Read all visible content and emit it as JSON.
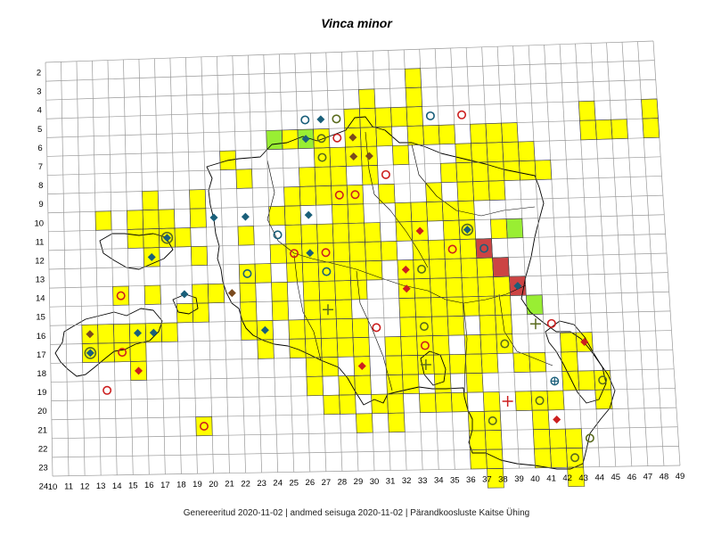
{
  "title": "Vinca minor",
  "footer": "Genereeritud 2020-11-02  |  andmed seisuga 2020-11-02  |  Pärandkoosluste Kaitse Ühing",
  "grid": {
    "columns": [
      10,
      11,
      12,
      13,
      14,
      15,
      16,
      17,
      18,
      19,
      20,
      21,
      22,
      23,
      24,
      25,
      26,
      27,
      28,
      29,
      30,
      31,
      32,
      33,
      34,
      35,
      36,
      37,
      38,
      39,
      40,
      41,
      42,
      43,
      44,
      45,
      46,
      47,
      48,
      49
    ],
    "rows": [
      2,
      3,
      4,
      5,
      6,
      7,
      8,
      9,
      10,
      11,
      12,
      13,
      14,
      15,
      16,
      17,
      18,
      19,
      20,
      21,
      22,
      23,
      24
    ]
  },
  "colors": {
    "yellow": "#ffff00",
    "green": "#99ee33",
    "red": "#cc4444",
    "blue_marker": "#1a5f7a",
    "brown_marker": "#7a4a1e",
    "red_marker": "#cc1f1f",
    "olive_marker": "#5a6b1e",
    "grid_line": "#999999",
    "coast": "#000000"
  },
  "filled_cells": {
    "yellow": [
      [
        33,
        3
      ],
      [
        30,
        4
      ],
      [
        33,
        4
      ],
      [
        29,
        5
      ],
      [
        30,
        5
      ],
      [
        31,
        5
      ],
      [
        32,
        5
      ],
      [
        33,
        5
      ],
      [
        44,
        5
      ],
      [
        48,
        5
      ],
      [
        25,
        6
      ],
      [
        27,
        6
      ],
      [
        29,
        6
      ],
      [
        30,
        6
      ],
      [
        31,
        6
      ],
      [
        33,
        6
      ],
      [
        34,
        6
      ],
      [
        35,
        6
      ],
      [
        37,
        6
      ],
      [
        38,
        6
      ],
      [
        39,
        6
      ],
      [
        44,
        6
      ],
      [
        45,
        6
      ],
      [
        46,
        6
      ],
      [
        48,
        6
      ],
      [
        21,
        7
      ],
      [
        27,
        7
      ],
      [
        28,
        7
      ],
      [
        29,
        7
      ],
      [
        30,
        7
      ],
      [
        32,
        7
      ],
      [
        36,
        7
      ],
      [
        37,
        7
      ],
      [
        38,
        7
      ],
      [
        39,
        7
      ],
      [
        40,
        7
      ],
      [
        22,
        8
      ],
      [
        26,
        8
      ],
      [
        27,
        8
      ],
      [
        28,
        8
      ],
      [
        30,
        8
      ],
      [
        35,
        8
      ],
      [
        36,
        8
      ],
      [
        37,
        8
      ],
      [
        38,
        8
      ],
      [
        39,
        8
      ],
      [
        40,
        8
      ],
      [
        41,
        8
      ],
      [
        16,
        9
      ],
      [
        19,
        9
      ],
      [
        25,
        9
      ],
      [
        26,
        9
      ],
      [
        27,
        9
      ],
      [
        28,
        9
      ],
      [
        29,
        9
      ],
      [
        31,
        9
      ],
      [
        34,
        9
      ],
      [
        36,
        9
      ],
      [
        37,
        9
      ],
      [
        38,
        9
      ],
      [
        13,
        10
      ],
      [
        15,
        10
      ],
      [
        16,
        10
      ],
      [
        17,
        10
      ],
      [
        19,
        10
      ],
      [
        24,
        10
      ],
      [
        25,
        10
      ],
      [
        28,
        10
      ],
      [
        29,
        10
      ],
      [
        32,
        10
      ],
      [
        33,
        10
      ],
      [
        34,
        10
      ],
      [
        35,
        10
      ],
      [
        36,
        10
      ],
      [
        15,
        11
      ],
      [
        16,
        11
      ],
      [
        17,
        11
      ],
      [
        18,
        11
      ],
      [
        22,
        11
      ],
      [
        25,
        11
      ],
      [
        26,
        11
      ],
      [
        27,
        11
      ],
      [
        28,
        11
      ],
      [
        29,
        11
      ],
      [
        30,
        11
      ],
      [
        32,
        11
      ],
      [
        33,
        11
      ],
      [
        35,
        11
      ],
      [
        36,
        11
      ],
      [
        38,
        11
      ],
      [
        16,
        12
      ],
      [
        19,
        12
      ],
      [
        24,
        12
      ],
      [
        25,
        12
      ],
      [
        26,
        12
      ],
      [
        27,
        12
      ],
      [
        28,
        12
      ],
      [
        29,
        12
      ],
      [
        30,
        12
      ],
      [
        31,
        12
      ],
      [
        33,
        12
      ],
      [
        34,
        12
      ],
      [
        35,
        12
      ],
      [
        36,
        12
      ],
      [
        37,
        12
      ],
      [
        22,
        13
      ],
      [
        23,
        13
      ],
      [
        25,
        13
      ],
      [
        26,
        13
      ],
      [
        27,
        13
      ],
      [
        28,
        13
      ],
      [
        29,
        13
      ],
      [
        30,
        13
      ],
      [
        32,
        13
      ],
      [
        33,
        13
      ],
      [
        34,
        13
      ],
      [
        35,
        13
      ],
      [
        36,
        13
      ],
      [
        37,
        13
      ],
      [
        38,
        13
      ],
      [
        14,
        14
      ],
      [
        16,
        14
      ],
      [
        19,
        14
      ],
      [
        20,
        14
      ],
      [
        22,
        14
      ],
      [
        24,
        14
      ],
      [
        26,
        14
      ],
      [
        27,
        14
      ],
      [
        28,
        14
      ],
      [
        29,
        14
      ],
      [
        32,
        14
      ],
      [
        33,
        14
      ],
      [
        34,
        14
      ],
      [
        35,
        14
      ],
      [
        36,
        14
      ],
      [
        37,
        14
      ],
      [
        38,
        14
      ],
      [
        18,
        15
      ],
      [
        19,
        15
      ],
      [
        22,
        15
      ],
      [
        24,
        15
      ],
      [
        26,
        15
      ],
      [
        27,
        15
      ],
      [
        28,
        15
      ],
      [
        32,
        15
      ],
      [
        33,
        15
      ],
      [
        34,
        15
      ],
      [
        35,
        15
      ],
      [
        36,
        15
      ],
      [
        37,
        15
      ],
      [
        38,
        15
      ],
      [
        12,
        16
      ],
      [
        13,
        16
      ],
      [
        14,
        16
      ],
      [
        15,
        16
      ],
      [
        16,
        16
      ],
      [
        17,
        16
      ],
      [
        22,
        16
      ],
      [
        23,
        16
      ],
      [
        25,
        16
      ],
      [
        26,
        16
      ],
      [
        27,
        16
      ],
      [
        28,
        16
      ],
      [
        29,
        16
      ],
      [
        32,
        16
      ],
      [
        33,
        16
      ],
      [
        34,
        16
      ],
      [
        35,
        16
      ],
      [
        37,
        16
      ],
      [
        38,
        16
      ],
      [
        12,
        17
      ],
      [
        13,
        17
      ],
      [
        14,
        17
      ],
      [
        15,
        17
      ],
      [
        23,
        17
      ],
      [
        25,
        17
      ],
      [
        26,
        17
      ],
      [
        27,
        17
      ],
      [
        28,
        17
      ],
      [
        29,
        17
      ],
      [
        31,
        17
      ],
      [
        32,
        17
      ],
      [
        33,
        17
      ],
      [
        34,
        17
      ],
      [
        36,
        17
      ],
      [
        37,
        17
      ],
      [
        38,
        17
      ],
      [
        42,
        17
      ],
      [
        43,
        17
      ],
      [
        15,
        18
      ],
      [
        26,
        18
      ],
      [
        27,
        18
      ],
      [
        29,
        18
      ],
      [
        31,
        18
      ],
      [
        32,
        18
      ],
      [
        33,
        18
      ],
      [
        34,
        18
      ],
      [
        35,
        18
      ],
      [
        36,
        18
      ],
      [
        37,
        18
      ],
      [
        39,
        18
      ],
      [
        40,
        18
      ],
      [
        42,
        18
      ],
      [
        26,
        19
      ],
      [
        28,
        19
      ],
      [
        29,
        19
      ],
      [
        31,
        19
      ],
      [
        32,
        19
      ],
      [
        34,
        19
      ],
      [
        36,
        19
      ],
      [
        42,
        19
      ],
      [
        43,
        19
      ],
      [
        44,
        19
      ],
      [
        27,
        20
      ],
      [
        28,
        20
      ],
      [
        30,
        20
      ],
      [
        31,
        20
      ],
      [
        33,
        20
      ],
      [
        34,
        20
      ],
      [
        35,
        20
      ],
      [
        37,
        20
      ],
      [
        39,
        20
      ],
      [
        40,
        20
      ],
      [
        41,
        20
      ],
      [
        44,
        20
      ],
      [
        19,
        21
      ],
      [
        29,
        21
      ],
      [
        31,
        21
      ],
      [
        36,
        21
      ],
      [
        37,
        21
      ],
      [
        40,
        21
      ],
      [
        36,
        22
      ],
      [
        37,
        22
      ],
      [
        40,
        22
      ],
      [
        41,
        22
      ],
      [
        42,
        22
      ],
      [
        36,
        23
      ],
      [
        37,
        23
      ],
      [
        40,
        23
      ],
      [
        41,
        23
      ],
      [
        42,
        23
      ],
      [
        37,
        24
      ],
      [
        42,
        24
      ]
    ],
    "green": [
      [
        24,
        6
      ],
      [
        26,
        6
      ],
      [
        39,
        11
      ],
      [
        40,
        15
      ]
    ],
    "red": [
      [
        37,
        12
      ],
      [
        38,
        13
      ],
      [
        39,
        14
      ]
    ]
  },
  "markers": [
    {
      "col": 26,
      "row": 5,
      "type": "circle",
      "color": "blue"
    },
    {
      "col": 27,
      "row": 5,
      "type": "diamond",
      "color": "blue"
    },
    {
      "col": 28,
      "row": 5,
      "type": "circle",
      "color": "olive"
    },
    {
      "col": 34,
      "row": 5,
      "type": "circle",
      "color": "blue"
    },
    {
      "col": 36,
      "row": 5,
      "type": "circle",
      "color": "red"
    },
    {
      "col": 26,
      "row": 6,
      "type": "diamond",
      "color": "blue"
    },
    {
      "col": 27,
      "row": 6,
      "type": "circle",
      "color": "olive"
    },
    {
      "col": 28,
      "row": 6,
      "type": "circle",
      "color": "red"
    },
    {
      "col": 29,
      "row": 6,
      "type": "diamond",
      "color": "brown"
    },
    {
      "col": 27,
      "row": 7,
      "type": "circle",
      "color": "olive"
    },
    {
      "col": 29,
      "row": 7,
      "type": "diamond",
      "color": "brown"
    },
    {
      "col": 30,
      "row": 7,
      "type": "diamond",
      "color": "brown"
    },
    {
      "col": 31,
      "row": 8,
      "type": "circle",
      "color": "red"
    },
    {
      "col": 28,
      "row": 9,
      "type": "circle",
      "color": "red"
    },
    {
      "col": 29,
      "row": 9,
      "type": "circle",
      "color": "red"
    },
    {
      "col": 20,
      "row": 10,
      "type": "diamond",
      "color": "blue"
    },
    {
      "col": 22,
      "row": 10,
      "type": "diamond",
      "color": "blue"
    },
    {
      "col": 26,
      "row": 10,
      "type": "diamond",
      "color": "blue"
    },
    {
      "col": 17,
      "row": 11,
      "type": "diamond-ring",
      "color": "blue"
    },
    {
      "col": 24,
      "row": 11,
      "type": "circle",
      "color": "blue"
    },
    {
      "col": 33,
      "row": 11,
      "type": "diamond",
      "color": "red"
    },
    {
      "col": 36,
      "row": 11,
      "type": "diamond-ring",
      "color": "blue"
    },
    {
      "col": 16,
      "row": 12,
      "type": "diamond",
      "color": "blue"
    },
    {
      "col": 25,
      "row": 12,
      "type": "circle",
      "color": "red"
    },
    {
      "col": 26,
      "row": 12,
      "type": "diamond",
      "color": "blue"
    },
    {
      "col": 27,
      "row": 12,
      "type": "circle",
      "color": "red"
    },
    {
      "col": 35,
      "row": 12,
      "type": "circle",
      "color": "red"
    },
    {
      "col": 37,
      "row": 12,
      "type": "circle",
      "color": "blue"
    },
    {
      "col": 22,
      "row": 13,
      "type": "circle",
      "color": "blue"
    },
    {
      "col": 27,
      "row": 13,
      "type": "circle",
      "color": "blue"
    },
    {
      "col": 32,
      "row": 13,
      "type": "diamond",
      "color": "red"
    },
    {
      "col": 33,
      "row": 13,
      "type": "circle",
      "color": "olive"
    },
    {
      "col": 14,
      "row": 14,
      "type": "circle",
      "color": "red"
    },
    {
      "col": 18,
      "row": 14,
      "type": "diamond",
      "color": "blue"
    },
    {
      "col": 21,
      "row": 14,
      "type": "diamond",
      "color": "brown"
    },
    {
      "col": 32,
      "row": 14,
      "type": "diamond",
      "color": "red"
    },
    {
      "col": 39,
      "row": 14,
      "type": "diamond",
      "color": "blue"
    },
    {
      "col": 27,
      "row": 15,
      "type": "plus",
      "color": "olive"
    },
    {
      "col": 12,
      "row": 16,
      "type": "diamond",
      "color": "brown"
    },
    {
      "col": 15,
      "row": 16,
      "type": "diamond",
      "color": "blue"
    },
    {
      "col": 16,
      "row": 16,
      "type": "diamond",
      "color": "blue"
    },
    {
      "col": 23,
      "row": 16,
      "type": "diamond",
      "color": "blue"
    },
    {
      "col": 30,
      "row": 16,
      "type": "circle",
      "color": "red"
    },
    {
      "col": 33,
      "row": 16,
      "type": "circle",
      "color": "olive"
    },
    {
      "col": 40,
      "row": 16,
      "type": "plus",
      "color": "olive"
    },
    {
      "col": 41,
      "row": 16,
      "type": "circle",
      "color": "red"
    },
    {
      "col": 12,
      "row": 17,
      "type": "diamond-ring",
      "color": "blue"
    },
    {
      "col": 14,
      "row": 17,
      "type": "circle",
      "color": "red"
    },
    {
      "col": 33,
      "row": 17,
      "type": "circle",
      "color": "red"
    },
    {
      "col": 38,
      "row": 17,
      "type": "circle",
      "color": "olive"
    },
    {
      "col": 43,
      "row": 17,
      "type": "diamond",
      "color": "red"
    },
    {
      "col": 15,
      "row": 18,
      "type": "diamond",
      "color": "red"
    },
    {
      "col": 29,
      "row": 18,
      "type": "diamond",
      "color": "red"
    },
    {
      "col": 33,
      "row": 18,
      "type": "plus",
      "color": "olive"
    },
    {
      "col": 13,
      "row": 19,
      "type": "circle",
      "color": "red"
    },
    {
      "col": 41,
      "row": 19,
      "type": "circle-plus",
      "color": "blue"
    },
    {
      "col": 44,
      "row": 19,
      "type": "circle",
      "color": "olive"
    },
    {
      "col": 38,
      "row": 20,
      "type": "plus",
      "color": "red"
    },
    {
      "col": 40,
      "row": 20,
      "type": "circle",
      "color": "olive"
    },
    {
      "col": 19,
      "row": 21,
      "type": "circle",
      "color": "red"
    },
    {
      "col": 37,
      "row": 21,
      "type": "circle",
      "color": "olive"
    },
    {
      "col": 41,
      "row": 21,
      "type": "diamond",
      "color": "red"
    },
    {
      "col": 43,
      "row": 22,
      "type": "circle",
      "color": "olive"
    },
    {
      "col": 42,
      "row": 23,
      "type": "circle",
      "color": "olive"
    }
  ]
}
